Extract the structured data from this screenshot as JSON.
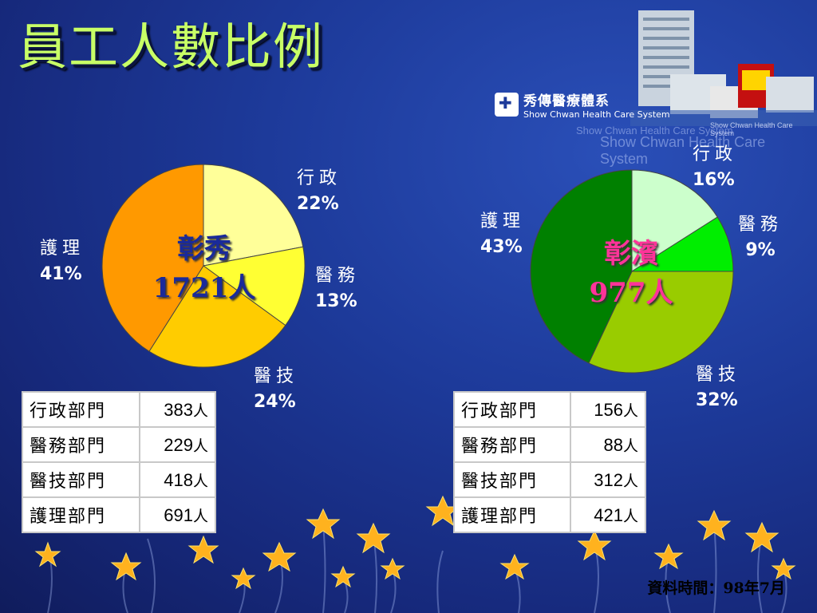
{
  "title": "員工人數比例",
  "logo": {
    "name_zh": "秀傳醫療體系",
    "name_en": "Show Chwan Health Care System"
  },
  "watermark_en": "Show Chwan Health Care System",
  "date_note": "資料時間：98年7月",
  "colors": {
    "title": "#c8ff66",
    "background": "#1d3a9a"
  },
  "chart_data": [
    {
      "type": "pie",
      "center_label": {
        "name": "彰秀",
        "total": "1721人"
      },
      "slices": [
        {
          "label": "行政",
          "value": 22,
          "pct": "22%",
          "color": "#ffff99"
        },
        {
          "label": "醫務",
          "value": 13,
          "pct": "13%",
          "color": "#ffff33"
        },
        {
          "label": "醫技",
          "value": 24,
          "pct": "24%",
          "color": "#ffcc00"
        },
        {
          "label": "護理",
          "value": 41,
          "pct": "41%",
          "color": "#ff9900"
        }
      ],
      "table": [
        {
          "dept": "行政部門",
          "count": "383",
          "unit": "人"
        },
        {
          "dept": "醫務部門",
          "count": "229",
          "unit": "人"
        },
        {
          "dept": "醫技部門",
          "count": "418",
          "unit": "人"
        },
        {
          "dept": "護理部門",
          "count": "691",
          "unit": "人"
        }
      ]
    },
    {
      "type": "pie",
      "center_label": {
        "name": "彰濱",
        "total": "977人"
      },
      "slices": [
        {
          "label": "行政",
          "value": 16,
          "pct": "16%",
          "color": "#ccffcc"
        },
        {
          "label": "醫務",
          "value": 9,
          "pct": "9%",
          "color": "#00ee00"
        },
        {
          "label": "醫技",
          "value": 32,
          "pct": "32%",
          "color": "#99cc00"
        },
        {
          "label": "護理",
          "value": 43,
          "pct": "43%",
          "color": "#008000"
        }
      ],
      "table": [
        {
          "dept": "行政部門",
          "count": "156",
          "unit": "人"
        },
        {
          "dept": "醫務部門",
          "count": "88",
          "unit": "人"
        },
        {
          "dept": "醫技部門",
          "count": "312",
          "unit": "人"
        },
        {
          "dept": "護理部門",
          "count": "421",
          "unit": "人"
        }
      ]
    }
  ]
}
